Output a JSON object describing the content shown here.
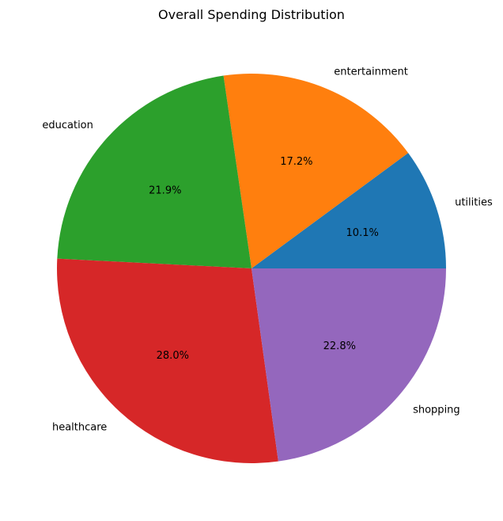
{
  "chart_data": {
    "type": "pie",
    "title": "Overall Spending Distribution",
    "slices": [
      {
        "label": "utilities",
        "value": 10.1,
        "percent_label": "10.1%",
        "color": "#1f77b4"
      },
      {
        "label": "entertainment",
        "value": 17.2,
        "percent_label": "17.2%",
        "color": "#ff7f0e"
      },
      {
        "label": "education",
        "value": 21.9,
        "percent_label": "21.9%",
        "color": "#2ca02c"
      },
      {
        "label": "healthcare",
        "value": 28.0,
        "percent_label": "28.0%",
        "color": "#d62728"
      },
      {
        "label": "shopping",
        "value": 22.8,
        "percent_label": "22.8%",
        "color": "#9467bd"
      }
    ],
    "start_angle_deg": 0,
    "direction": "counterclockwise",
    "legend": "none"
  }
}
